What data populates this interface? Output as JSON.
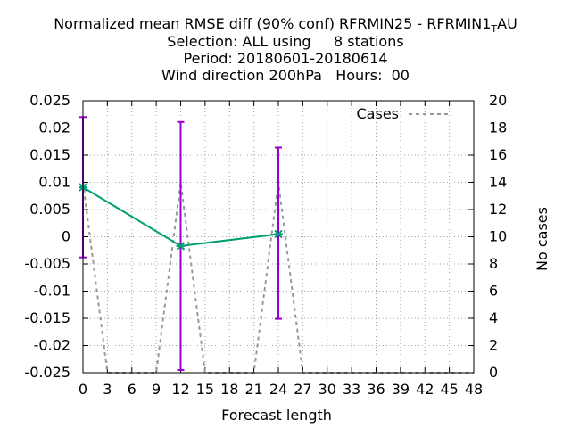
{
  "title_lines": [
    "Normalized mean RMSE diff (90% conf) RFRMIN25 - RFRMIN1",
    "Selection: ALL using     8 stations",
    "Period: 20180601-20180614",
    "Wind direction 200hPa   Hours:  00"
  ],
  "title_subscript": "T",
  "title_suffix": "AU",
  "chart_data": {
    "type": "line",
    "xlabel": "Forecast length",
    "ylabel": "",
    "y2label": "No cases",
    "xlim": [
      0,
      48
    ],
    "ylim": [
      -0.025,
      0.025
    ],
    "y2lim": [
      0,
      20
    ],
    "grid": true,
    "legend_position": "top-right",
    "x_ticks": [
      0,
      3,
      6,
      9,
      12,
      15,
      18,
      21,
      24,
      27,
      30,
      33,
      36,
      39,
      42,
      45,
      48
    ],
    "y_ticks": [
      "-0.025",
      "-0.02",
      "-0.015",
      "-0.01",
      "-0.005",
      "0",
      "0.005",
      "0.01",
      "0.015",
      "0.02",
      "0.025"
    ],
    "y2_ticks": [
      0,
      2,
      4,
      6,
      8,
      10,
      12,
      14,
      16,
      18,
      20
    ],
    "series": [
      {
        "kind": "line-errorbars",
        "color": "#009e73",
        "errorbar_color": "#9400d3",
        "x": [
          0,
          12,
          24
        ],
        "y": [
          0.0091,
          -0.0017,
          0.0005
        ],
        "y_low": [
          -0.0038,
          -0.0245,
          -0.0151
        ],
        "y_high": [
          0.022,
          0.0211,
          0.0164
        ]
      },
      {
        "name": "Cases",
        "axis": "y2",
        "kind": "dashed-line",
        "color": "#999999",
        "x": [
          0,
          3,
          6,
          9,
          12,
          15,
          18,
          21,
          24,
          27,
          30,
          33,
          36,
          39,
          42,
          45,
          48
        ],
        "y": [
          14,
          0,
          0,
          0,
          14,
          0,
          0,
          0,
          14,
          0,
          0,
          0,
          0,
          0,
          0,
          0,
          0
        ]
      }
    ]
  }
}
